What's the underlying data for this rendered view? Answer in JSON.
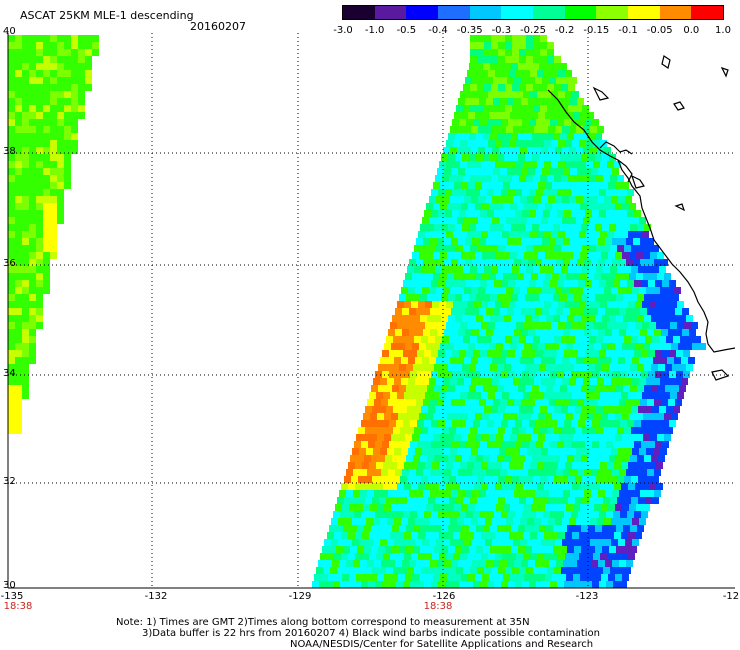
{
  "header": {
    "title": "ASCAT 25KM MLE-1 descending",
    "date": "20160207"
  },
  "colorbar": {
    "ticks": [
      "-3.0",
      "-1.0",
      "-0.5",
      "-0.4",
      "-0.35",
      "-0.3",
      "-0.25",
      "-0.2",
      "-0.15",
      "-0.1",
      "-0.05",
      "0.0",
      "1.0"
    ],
    "colors": [
      "#1a0030",
      "#5a1aa0",
      "#0000ff",
      "#1e6eff",
      "#00c8ff",
      "#00ffff",
      "#00ff96",
      "#00ff00",
      "#8cff00",
      "#ffff00",
      "#ff8c00",
      "#ff0000"
    ]
  },
  "axes": {
    "latitudes": [
      "40",
      "38",
      "36",
      "34",
      "32",
      "30"
    ],
    "longitudes": [
      "-135",
      "-132",
      "-129",
      "-126",
      "-123",
      "-12"
    ],
    "times": [
      "18:38",
      "18:38"
    ]
  },
  "notes": {
    "line1": "Note: 1) Times are GMT 2)Times along bottom correspond to measurement at 35N",
    "line2": "3)Data buffer is 22 hrs from 20160207 4) Black wind barbs indicate possible contamination",
    "line3": "NOAA/NESDIS/Center for Satellite Applications and Research"
  },
  "map_colors": {
    "green": "#33ff00",
    "lime": "#7cff00",
    "yellow_green": "#c8ff00",
    "cyan": "#00ffff",
    "teal": "#00ffc0",
    "aqua_green": "#00ff80",
    "blue": "#0044ff",
    "light_blue": "#00c8ff",
    "purple": "#6020c0",
    "yellow": "#ffff00",
    "orange": "#ff8c00",
    "dark_orange": "#ff7000"
  }
}
